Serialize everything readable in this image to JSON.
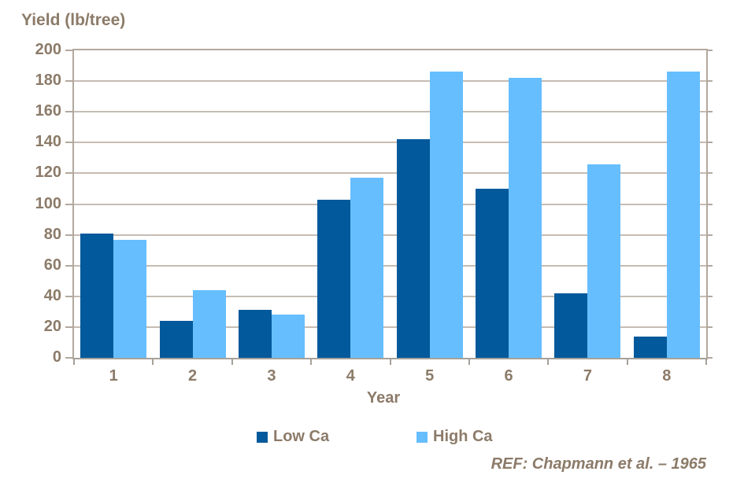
{
  "title": "Yield (lb/tree)",
  "x_axis_title": "Year",
  "legend": {
    "items": [
      {
        "label": "Low Ca",
        "color": "#02599B"
      },
      {
        "label": "High Ca",
        "color": "#66BEFE"
      }
    ]
  },
  "reference": "REF: Chapmann et al. – 1965",
  "colors": {
    "low_ca": "#02599B",
    "high_ca": "#66BEFE",
    "axis": "#B3A89E",
    "grid": "#C6BCB3",
    "text": "#8C7B69"
  },
  "chart_data": {
    "type": "bar",
    "categories": [
      "1",
      "2",
      "3",
      "4",
      "5",
      "6",
      "7",
      "8"
    ],
    "series": [
      {
        "name": "Low Ca",
        "color": "#02599B",
        "values": [
          81,
          24,
          31,
          103,
          142,
          110,
          42,
          14
        ]
      },
      {
        "name": "High Ca",
        "color": "#66BEFE",
        "values": [
          77,
          44,
          28,
          117,
          186,
          182,
          126,
          186
        ]
      }
    ],
    "title": "Yield (lb/tree)",
    "xlabel": "Year",
    "ylabel": "Yield (lb/tree)",
    "ylim": [
      0,
      200
    ],
    "ytick_step": 20,
    "grid": true,
    "legend_position": "bottom",
    "annotation": "REF: Chapmann et al. – 1965"
  }
}
